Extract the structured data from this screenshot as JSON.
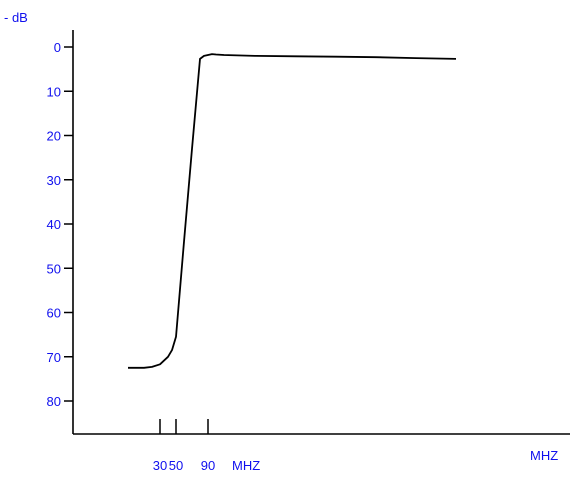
{
  "chart_data": {
    "type": "line",
    "ylabel": "- dB",
    "xlabel": "MHZ",
    "y_ticks": [
      0,
      10,
      20,
      30,
      40,
      50,
      60,
      70,
      80
    ],
    "y_tick_labels": [
      "0",
      "10",
      "20",
      "30",
      "40",
      "50",
      "60",
      "70",
      "80"
    ],
    "ylim": [
      0,
      88
    ],
    "y_inverted": true,
    "x_ticks": [
      {
        "label": "30",
        "value": 30
      },
      {
        "label": "50",
        "value": 50
      },
      {
        "label": "90",
        "value": 90
      }
    ],
    "x_tick_unit_label": "MHZ",
    "xlim": [
      -44,
      402
    ],
    "series": [
      {
        "x": [
          -10,
          0,
          10,
          20,
          30,
          40,
          45,
          50,
          60,
          70,
          80,
          85,
          90,
          95,
          100,
          110,
          150,
          200,
          250,
          300,
          350,
          400
        ],
        "y": [
          72.5,
          72.5,
          72.5,
          72.3,
          71.7,
          70.0,
          68.5,
          65.5,
          44.0,
          23.0,
          2.7,
          2.0,
          1.8,
          1.6,
          1.7,
          1.8,
          2.0,
          2.1,
          2.2,
          2.3,
          2.5,
          2.7
        ]
      }
    ],
    "grid": false,
    "colors": {
      "labels": "#1010ee",
      "axes": "#000000",
      "curve": "#000000"
    }
  }
}
